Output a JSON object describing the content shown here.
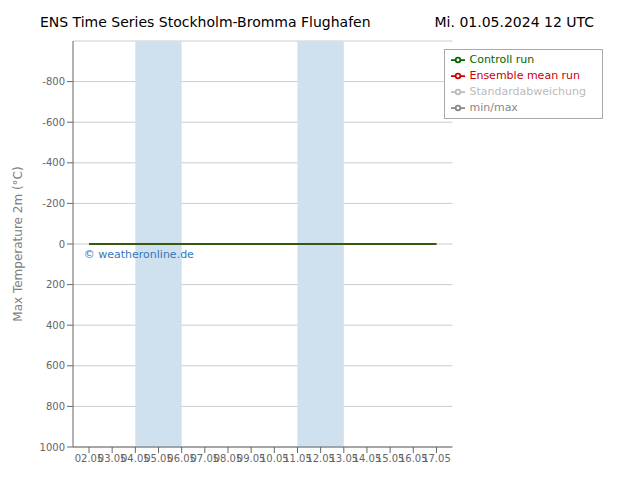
{
  "chart_data": {
    "type": "line",
    "title": "ENS Time Series Stockholm-Bromma Flughafen",
    "subtitle": "Mi. 01.05.2024 12 UTC",
    "y_label": "Max Temperature 2m (°C)",
    "categories": [
      "02.05",
      "03.05",
      "04.05",
      "05.05",
      "06.05",
      "07.05",
      "08.05",
      "09.05",
      "10.05",
      "11.05",
      "12.05",
      "13.05",
      "14.05",
      "15.05",
      "16.05",
      "17.05"
    ],
    "series": [
      {
        "name": "min/max",
        "color": "#888888",
        "values": [
          null,
          null,
          null,
          null,
          null,
          null,
          null,
          null,
          null,
          null,
          null,
          null,
          null,
          null,
          null,
          null
        ]
      },
      {
        "name": "Standardabweichung",
        "color": "#bbbbbb",
        "values": [
          null,
          null,
          null,
          null,
          null,
          null,
          null,
          null,
          null,
          null,
          null,
          null,
          null,
          null,
          null,
          null
        ]
      },
      {
        "name": "Ensemble mean run",
        "color": "#cc0000",
        "values": [
          0,
          0,
          0,
          0,
          0,
          0,
          0,
          0,
          0,
          0,
          0,
          0,
          0,
          0,
          0,
          0
        ]
      },
      {
        "name": "Controll run",
        "color": "#006400",
        "values": [
          0,
          0,
          0,
          0,
          0,
          0,
          0,
          0,
          0,
          0,
          0,
          0,
          0,
          0,
          0,
          0
        ]
      }
    ],
    "shaded_bands": [
      {
        "x0": "04.05",
        "x1": "06.05",
        "color": "#cfe0ef"
      },
      {
        "x0": "11.05",
        "x1": "13.05",
        "color": "#cfe0ef"
      }
    ],
    "annotations": [
      {
        "text": "© weatheronline.de",
        "color": "#3377bb"
      }
    ],
    "ylim": [
      1000,
      -1000
    ],
    "yticks": [
      -800,
      -600,
      -400,
      -200,
      0,
      200,
      400,
      600,
      800,
      1000
    ],
    "grid": true,
    "legend": "upper right"
  }
}
